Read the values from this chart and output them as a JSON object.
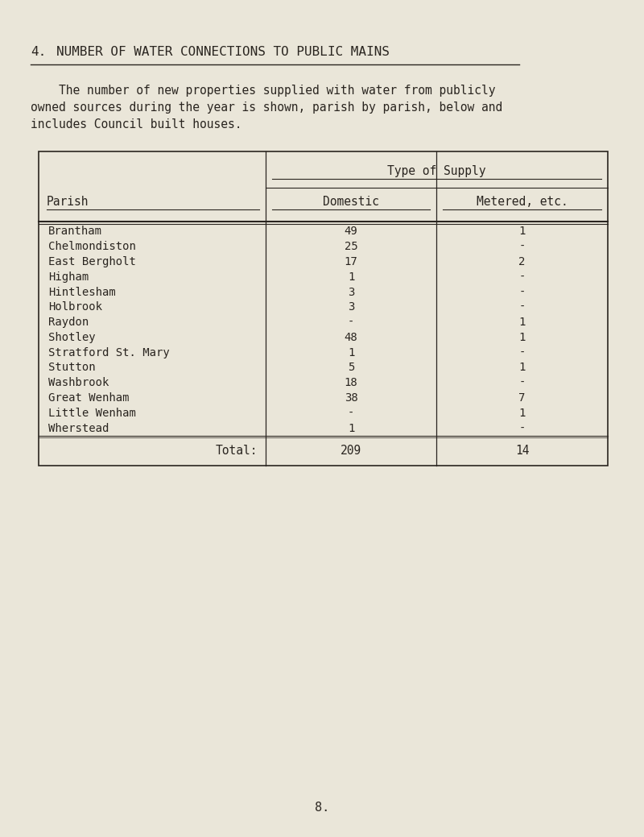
{
  "title_number": "4.",
  "title_text": "NUMBER OF WATER CONNECTIONS TO PUBLIC MAINS",
  "para_line1": "    The number of new properties supplied with water from publicly",
  "para_line2": "owned sources during the year is shown, parish by parish, below and",
  "para_line3": "includes Council built houses.",
  "col_header_span": "Type of Supply",
  "col1_header": "Parish",
  "col2_header": "Domestic",
  "col3_header": "Metered, etc.",
  "parishes": [
    "Brantham",
    "Chelmondiston",
    "East Bergholt",
    "Higham",
    "Hintlesham",
    "Holbrook",
    "Raydon",
    "Shotley",
    "Stratford St. Mary",
    "Stutton",
    "Washbrook",
    "Great Wenham",
    "Little Wenham",
    "Wherstead"
  ],
  "domestic": [
    "49",
    "25",
    "17",
    "1",
    "3",
    "3",
    "-",
    "48",
    "1",
    "5",
    "18",
    "38",
    "-",
    "1"
  ],
  "metered": [
    "1",
    "-",
    "2",
    "-",
    "-",
    "-",
    "1",
    "1",
    "-",
    "1",
    "-",
    "7",
    "1",
    "-"
  ],
  "total_domestic": "209",
  "total_metered": "14",
  "page_number": "8.",
  "bg_color": "#eae6d9",
  "text_color": "#2a2520"
}
